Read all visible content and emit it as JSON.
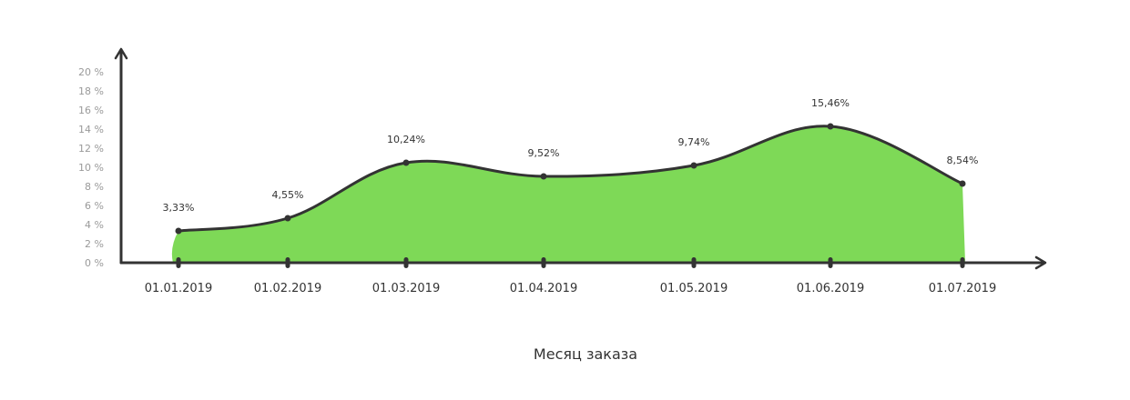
{
  "chart_data": {
    "type": "area",
    "categories": [
      "01.01.2019",
      "01.02.2019",
      "01.03.2019",
      "01.04.2019",
      "01.05.2019",
      "01.06.2019",
      "01.07.2019"
    ],
    "series": [
      {
        "values": [
          3.33,
          4.55,
          10.24,
          9.52,
          9.74,
          15.46,
          8.54
        ]
      }
    ],
    "data_labels": [
      "3,33%",
      "4,55%",
      "10,24%",
      "9,52%",
      "9,74%",
      "15,46%",
      "8,54%"
    ],
    "y_ticks": [
      "0 %",
      "2 %",
      "4 %",
      "6 %",
      "8 %",
      "10 %",
      "12 %",
      "14 %",
      "16 %",
      "18 %",
      "20 %"
    ],
    "ylim": [
      0,
      20
    ],
    "xlabel": "Месяц заказа",
    "ylabel": "",
    "grid": false,
    "legend": "none",
    "fill_color": "#7ed957",
    "line_color": "#333333"
  }
}
